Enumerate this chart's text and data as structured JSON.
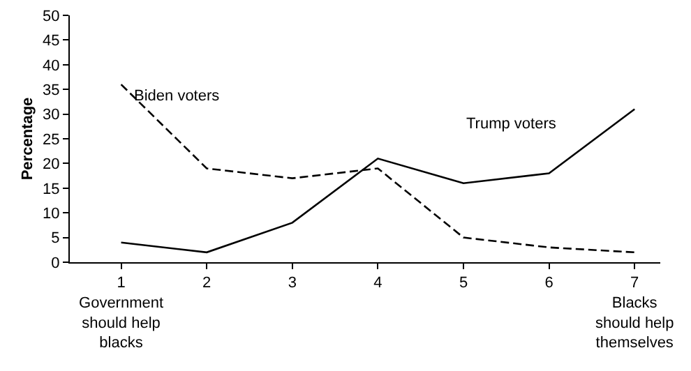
{
  "chart_data": {
    "type": "line",
    "ylabel": "Percentage",
    "categories": [
      "1\nGovernment\nshould help\nblacks",
      "2",
      "3",
      "4",
      "5",
      "6",
      "7\nBlacks\nshould help\nthemselves"
    ],
    "series": [
      {
        "name": "Biden voters",
        "color": "#000000",
        "line_style": "dashed",
        "values": [
          36,
          19,
          17,
          19,
          5,
          3,
          2
        ]
      },
      {
        "name": "Trump voters",
        "color": "#000000",
        "line_style": "solid",
        "values": [
          4,
          2,
          8,
          21,
          16,
          18,
          31
        ]
      }
    ],
    "ylim": [
      0,
      50
    ],
    "yticks": [
      0,
      5,
      10,
      15,
      20,
      25,
      30,
      35,
      40,
      45,
      50
    ],
    "legend": false,
    "marker": "none"
  }
}
